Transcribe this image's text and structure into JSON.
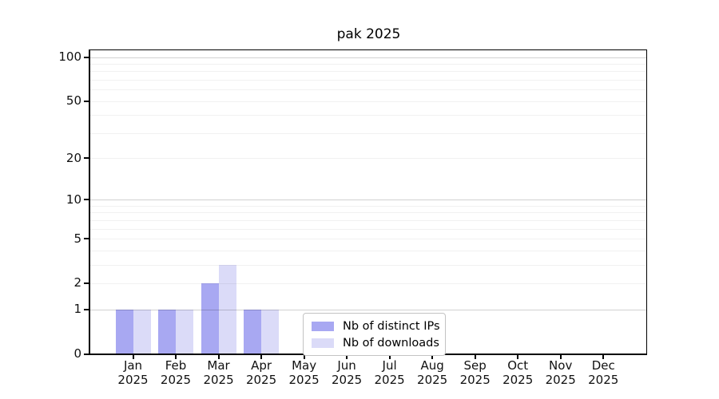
{
  "figure": {
    "title": "pak 2025"
  },
  "chart_data": {
    "type": "bar",
    "title": "pak 2025",
    "categories": [
      "Jan",
      "Feb",
      "Mar",
      "Apr",
      "May",
      "Jun",
      "Jul",
      "Aug",
      "Sep",
      "Oct",
      "Nov",
      "Dec"
    ],
    "year": "2025",
    "series": [
      {
        "name": "Nb of distinct IPs",
        "color": "#a8a8f2",
        "values": [
          1,
          1,
          2,
          1,
          0,
          0,
          0,
          0,
          0,
          0,
          0,
          0
        ]
      },
      {
        "name": "Nb of downloads",
        "color": "#dbdbf8",
        "values": [
          1,
          1,
          3,
          1,
          0,
          0,
          0,
          0,
          0,
          0,
          0,
          0
        ]
      }
    ],
    "y_axis": {
      "scale": "log10(1+x)",
      "ticks": [
        0,
        1,
        2,
        5,
        10,
        20,
        50,
        100
      ],
      "minor_gridlines": [
        2,
        3,
        4,
        5,
        6,
        7,
        8,
        9,
        20,
        30,
        40,
        50,
        60,
        70,
        80,
        90
      ],
      "major_gridlines": [
        1,
        10,
        100
      ],
      "ylim": [
        0,
        113
      ]
    },
    "x_axis": {
      "tick_label_lines": 2
    },
    "grid": "horizontal",
    "legend": {
      "position": "inside-bottom-center",
      "entries": [
        "Nb of distinct IPs",
        "Nb of downloads"
      ]
    }
  }
}
